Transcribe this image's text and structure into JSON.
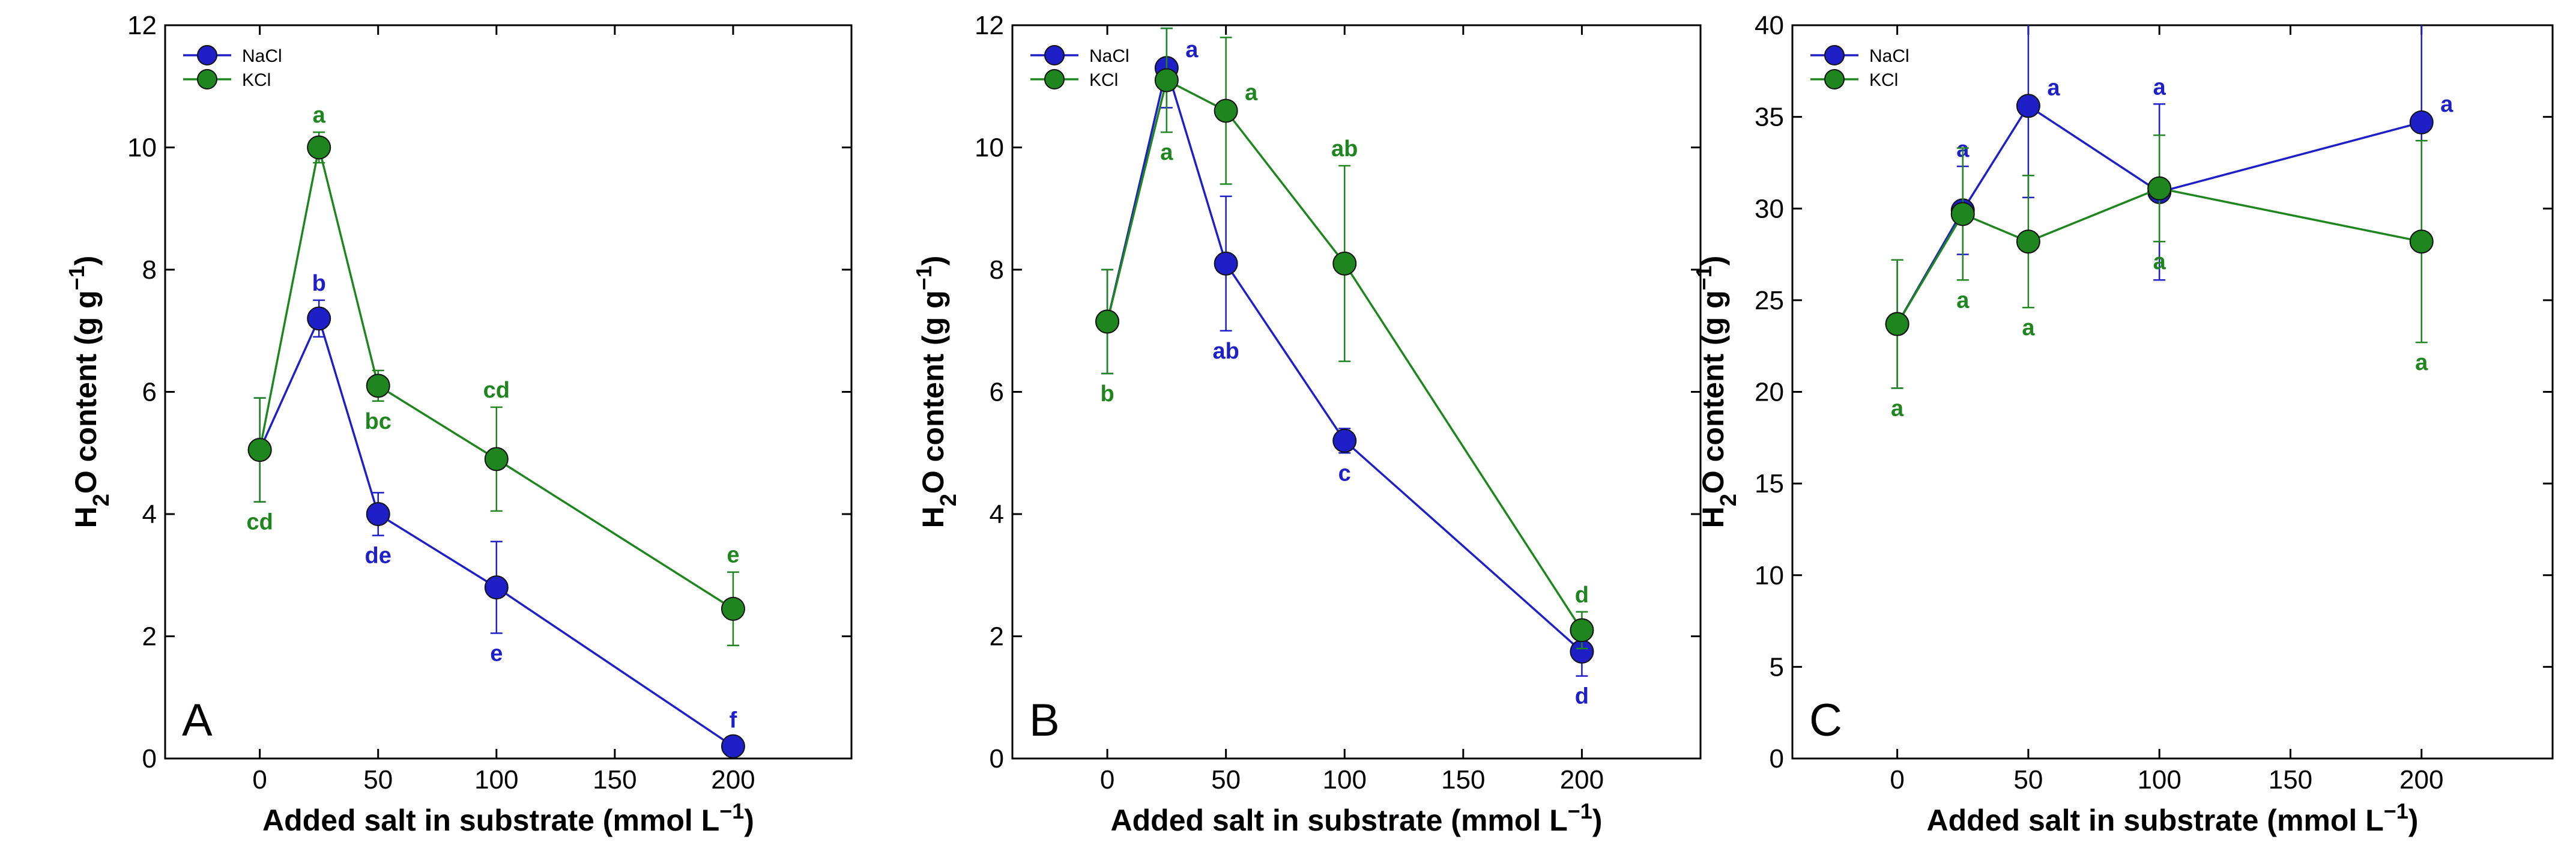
{
  "colors": {
    "NaCl": "#1f1fc8",
    "KCl": "#1f851f"
  },
  "chart_data": [
    {
      "type": "line",
      "panel": "A",
      "xlabel": "Added salt in substrate (mmol L−1)",
      "ylabel": "H2O content (g g−1)",
      "xlim": [
        -40,
        250
      ],
      "ylim": [
        0,
        12
      ],
      "xticks": [
        0,
        50,
        100,
        150,
        200
      ],
      "yticks": [
        0,
        2,
        4,
        6,
        8,
        10,
        12
      ],
      "x": [
        0,
        25,
        50,
        100,
        200
      ],
      "legend": [
        "NaCl",
        "KCl"
      ],
      "legend_position": "top-left",
      "series": [
        {
          "name": "NaCl",
          "values": [
            5.05,
            7.2,
            4.0,
            2.8,
            0.2
          ],
          "errors": [
            0.85,
            0.3,
            0.35,
            0.75,
            0.15
          ],
          "letters": [
            "",
            "b",
            "de",
            "e",
            "f"
          ],
          "letter_pos": [
            "",
            "above",
            "below",
            "below",
            "above"
          ]
        },
        {
          "name": "KCl",
          "values": [
            5.05,
            10.0,
            6.1,
            4.9,
            2.45
          ],
          "errors": [
            0.85,
            0.25,
            0.25,
            0.85,
            0.6
          ],
          "letters": [
            "cd",
            "a",
            "bc",
            "cd",
            "e"
          ],
          "letter_pos": [
            "below",
            "above",
            "below",
            "above",
            "above"
          ]
        }
      ]
    },
    {
      "type": "line",
      "panel": "B",
      "xlabel": "Added salt in substrate (mmol L−1)",
      "ylabel": "H2O content (g g−1)",
      "xlim": [
        -40,
        250
      ],
      "ylim": [
        0,
        12
      ],
      "xticks": [
        0,
        50,
        100,
        150,
        200
      ],
      "yticks": [
        0,
        2,
        4,
        6,
        8,
        10,
        12
      ],
      "x": [
        0,
        25,
        50,
        100,
        200
      ],
      "legend": [
        "NaCl",
        "KCl"
      ],
      "legend_position": "top-left",
      "series": [
        {
          "name": "NaCl",
          "values": [
            7.15,
            11.3,
            8.1,
            5.2,
            1.75
          ],
          "errors": [
            0.85,
            0.65,
            1.1,
            0.2,
            0.4
          ],
          "letters": [
            "",
            "a",
            "ab",
            "c",
            "d"
          ],
          "letter_pos": [
            "",
            "right",
            "below",
            "below",
            "below"
          ]
        },
        {
          "name": "KCl",
          "values": [
            7.15,
            11.1,
            10.6,
            8.1,
            2.1
          ],
          "errors": [
            0.85,
            0.85,
            1.2,
            1.6,
            0.3
          ],
          "letters": [
            "b",
            "a",
            "a",
            "ab",
            "d"
          ],
          "letter_pos": [
            "below",
            "below",
            "right",
            "above",
            "above"
          ]
        }
      ]
    },
    {
      "type": "line",
      "panel": "C",
      "xlabel": "Added salt in substrate (mmol L−1)",
      "ylabel": "H2O content (g g−1)",
      "xlim": [
        -40,
        250
      ],
      "ylim": [
        0,
        40
      ],
      "xticks": [
        0,
        50,
        100,
        150,
        200
      ],
      "yticks": [
        0,
        5,
        10,
        15,
        20,
        25,
        30,
        35,
        40
      ],
      "x": [
        0,
        25,
        50,
        100,
        200
      ],
      "legend": [
        "NaCl",
        "KCl"
      ],
      "legend_position": "top-left",
      "series": [
        {
          "name": "NaCl",
          "values": [
            23.7,
            29.9,
            35.6,
            30.9,
            34.7
          ],
          "errors": [
            3.5,
            2.4,
            5.0,
            4.8,
            6.5
          ],
          "letters": [
            "",
            "a",
            "a",
            "a",
            "a"
          ],
          "letter_pos": [
            "",
            "above",
            "right",
            "above",
            "right"
          ]
        },
        {
          "name": "KCl",
          "values": [
            23.7,
            29.7,
            28.2,
            31.1,
            28.2
          ],
          "errors": [
            3.5,
            3.6,
            3.6,
            2.9,
            5.5
          ],
          "letters": [
            "a",
            "a",
            "a",
            "a",
            "a"
          ],
          "letter_pos": [
            "below",
            "below",
            "below",
            "below",
            "below"
          ]
        }
      ]
    }
  ]
}
